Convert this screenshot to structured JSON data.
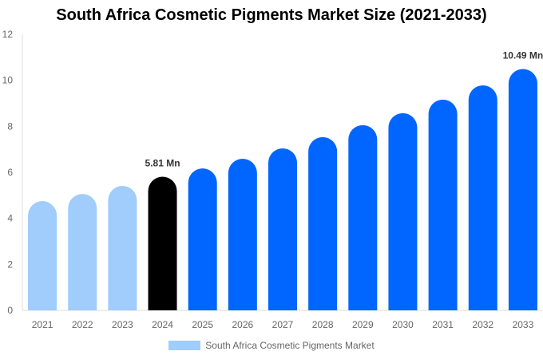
{
  "chart_data": {
    "type": "bar",
    "title": "South Africa Cosmetic Pigments Market Size (2021-2033)",
    "categories": [
      "2021",
      "2022",
      "2023",
      "2024",
      "2025",
      "2026",
      "2027",
      "2028",
      "2029",
      "2030",
      "2031",
      "2032",
      "2033"
    ],
    "series": [
      {
        "name": "South Africa Cosmetic Pigments Market",
        "values": [
          4.75,
          5.06,
          5.41,
          5.81,
          6.17,
          6.59,
          7.04,
          7.53,
          8.05,
          8.57,
          9.16,
          9.78,
          10.49
        ]
      }
    ],
    "data_labels": {
      "2024": "5.81 Mn",
      "2033": "10.49 Mn"
    },
    "ylim": [
      0,
      12
    ],
    "yticks": [
      0,
      2,
      4,
      6,
      8,
      10,
      12
    ],
    "grid": false,
    "legend": "bottom",
    "colors": {
      "historical": "#a0cdfc",
      "current": "#000000",
      "forecast": "#0066ff",
      "axis": "#dddddd"
    }
  }
}
